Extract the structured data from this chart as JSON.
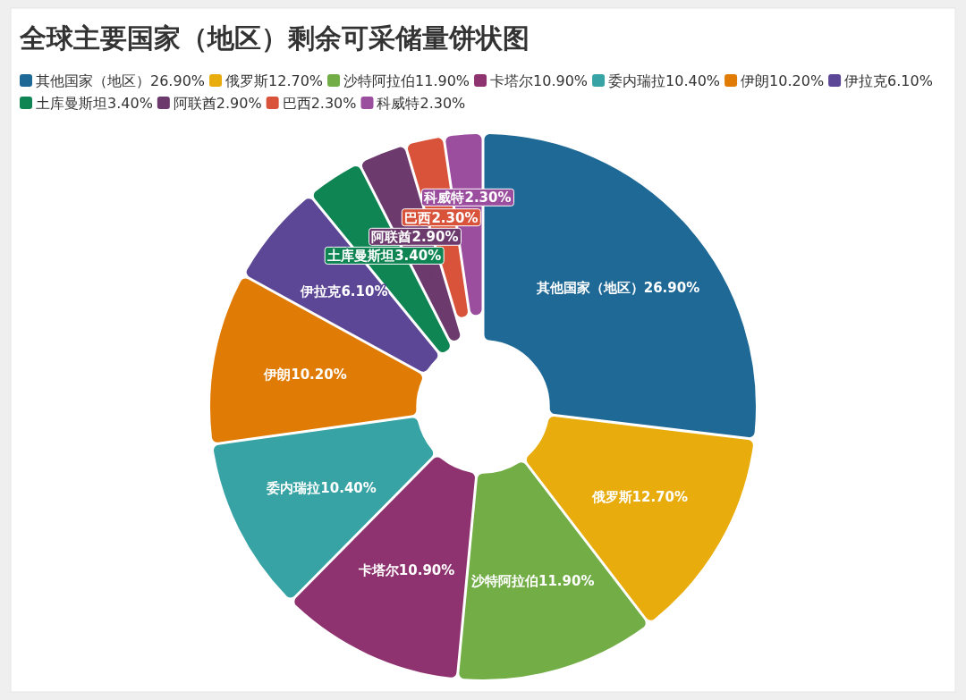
{
  "chart_data": {
    "type": "donut",
    "title": "全球主要国家（地区）剩余可采储量饼状图",
    "categories": [
      "其他国家（地区）",
      "俄罗斯",
      "沙特阿拉伯",
      "卡塔尔",
      "委内瑞拉",
      "伊朗",
      "伊拉克",
      "土库曼斯坦",
      "阿联酋",
      "巴西",
      "科威特"
    ],
    "values": [
      26.9,
      12.7,
      11.9,
      10.9,
      10.4,
      10.2,
      6.1,
      3.4,
      2.9,
      2.3,
      2.3
    ],
    "value_labels": [
      "26.90%",
      "12.70%",
      "11.90%",
      "10.90%",
      "10.40%",
      "10.20%",
      "6.10%",
      "3.40%",
      "2.90%",
      "2.30%",
      "2.30%"
    ],
    "colors": [
      "#1f6996",
      "#e8ac0c",
      "#72ad46",
      "#8e336f",
      "#37a3a4",
      "#e07c05",
      "#5c4796",
      "#0e8553",
      "#6c3a6d",
      "#d9533b",
      "#9b4d9e"
    ],
    "legend": "top"
  }
}
